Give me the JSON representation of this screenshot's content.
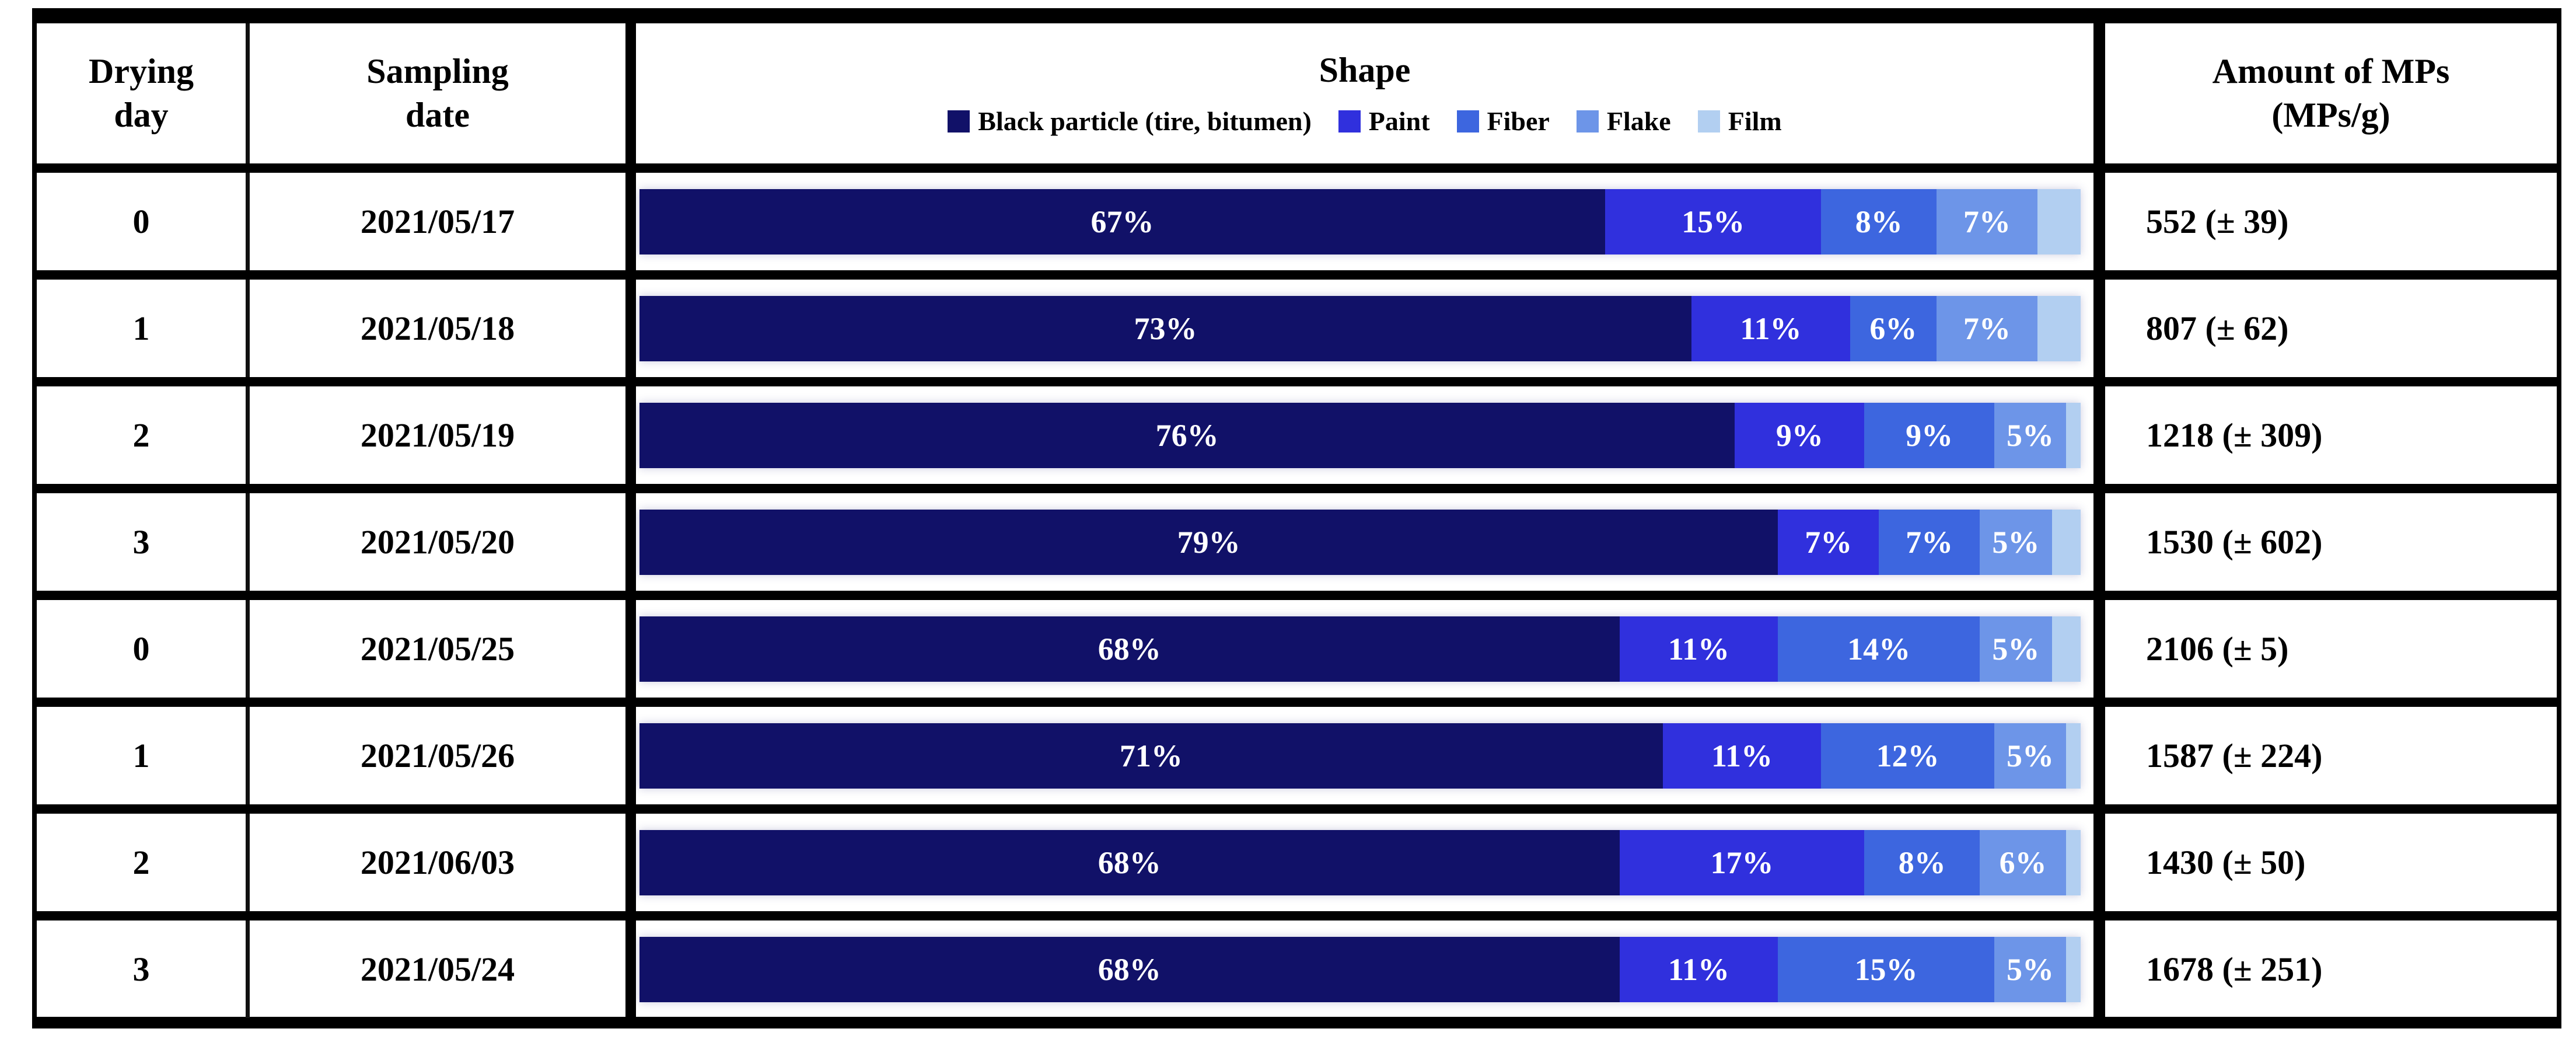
{
  "table": {
    "headers": {
      "drying_day": "Drying\nday",
      "sampling_date": "Sampling\ndate",
      "shape": "Shape",
      "amount": "Amount of MPs\n(MPs/g)"
    }
  },
  "legend": [
    {
      "key": "black-particle",
      "label": "Black particle (tire, bitumen)",
      "color": "#111168"
    },
    {
      "key": "paint",
      "label": "Paint",
      "color": "#3030dd"
    },
    {
      "key": "fiber",
      "label": "Fiber",
      "color": "#3d66df"
    },
    {
      "key": "flake",
      "label": "Flake",
      "color": "#6d95e8"
    },
    {
      "key": "film",
      "label": "Film",
      "color": "#b2cff1"
    }
  ],
  "rows": [
    {
      "drying_day": "0",
      "sampling_date": "2021/05/17",
      "amount": "552 (± 39)",
      "segments": [
        {
          "value": 67,
          "label": "67%"
        },
        {
          "value": 15,
          "label": "15%"
        },
        {
          "value": 8,
          "label": "8%"
        },
        {
          "value": 7,
          "label": "7%"
        },
        {
          "value": 3,
          "label": ""
        }
      ]
    },
    {
      "drying_day": "1",
      "sampling_date": "2021/05/18",
      "amount": "807 (± 62)",
      "segments": [
        {
          "value": 73,
          "label": "73%"
        },
        {
          "value": 11,
          "label": "11%"
        },
        {
          "value": 6,
          "label": "6%"
        },
        {
          "value": 7,
          "label": "7%"
        },
        {
          "value": 3,
          "label": ""
        }
      ]
    },
    {
      "drying_day": "2",
      "sampling_date": "2021/05/19",
      "amount": "1218 (± 309)",
      "segments": [
        {
          "value": 76,
          "label": "76%"
        },
        {
          "value": 9,
          "label": "9%"
        },
        {
          "value": 9,
          "label": "9%"
        },
        {
          "value": 5,
          "label": "5%"
        },
        {
          "value": 1,
          "label": ""
        }
      ]
    },
    {
      "drying_day": "3",
      "sampling_date": "2021/05/20",
      "amount": "1530 (± 602)",
      "segments": [
        {
          "value": 79,
          "label": "79%"
        },
        {
          "value": 7,
          "label": "7%"
        },
        {
          "value": 7,
          "label": "7%"
        },
        {
          "value": 5,
          "label": "5%"
        },
        {
          "value": 2,
          "label": ""
        }
      ]
    },
    {
      "drying_day": "0",
      "sampling_date": "2021/05/25",
      "amount": "2106 (± 5)",
      "segments": [
        {
          "value": 68,
          "label": "68%"
        },
        {
          "value": 11,
          "label": "11%"
        },
        {
          "value": 14,
          "label": "14%"
        },
        {
          "value": 5,
          "label": "5%"
        },
        {
          "value": 2,
          "label": ""
        }
      ]
    },
    {
      "drying_day": "1",
      "sampling_date": "2021/05/26",
      "amount": "1587 (± 224)",
      "segments": [
        {
          "value": 71,
          "label": "71%"
        },
        {
          "value": 11,
          "label": "11%"
        },
        {
          "value": 12,
          "label": "12%"
        },
        {
          "value": 5,
          "label": "5%"
        },
        {
          "value": 1,
          "label": ""
        }
      ]
    },
    {
      "drying_day": "2",
      "sampling_date": "2021/06/03",
      "amount": "1430 (± 50)",
      "segments": [
        {
          "value": 68,
          "label": "68%"
        },
        {
          "value": 17,
          "label": "17%"
        },
        {
          "value": 8,
          "label": "8%"
        },
        {
          "value": 6,
          "label": "6%"
        },
        {
          "value": 1,
          "label": ""
        }
      ]
    },
    {
      "drying_day": "3",
      "sampling_date": "2021/05/24",
      "amount": "1678 (± 251)",
      "segments": [
        {
          "value": 68,
          "label": "68%"
        },
        {
          "value": 11,
          "label": "11%"
        },
        {
          "value": 15,
          "label": "15%"
        },
        {
          "value": 5,
          "label": "5%"
        },
        {
          "value": 1,
          "label": ""
        }
      ]
    }
  ],
  "chart_data": {
    "type": "bar",
    "subtype": "horizontal-stacked-percentage",
    "title": "Shape",
    "legend_position": "top",
    "legend": [
      "Black particle (tire, bitumen)",
      "Paint",
      "Fiber",
      "Flake",
      "Film"
    ],
    "categories": [
      "2021/05/17",
      "2021/05/18",
      "2021/05/19",
      "2021/05/20",
      "2021/05/25",
      "2021/05/26",
      "2021/06/03",
      "2021/05/24"
    ],
    "series": [
      {
        "name": "Black particle (tire, bitumen)",
        "values": [
          67,
          73,
          76,
          79,
          68,
          71,
          68,
          68
        ]
      },
      {
        "name": "Paint",
        "values": [
          15,
          11,
          9,
          7,
          11,
          11,
          17,
          11
        ]
      },
      {
        "name": "Fiber",
        "values": [
          8,
          6,
          9,
          7,
          14,
          12,
          8,
          15
        ]
      },
      {
        "name": "Flake",
        "values": [
          7,
          7,
          5,
          5,
          5,
          5,
          6,
          5
        ]
      },
      {
        "name": "Film",
        "values": [
          3,
          3,
          1,
          2,
          2,
          1,
          1,
          1
        ]
      }
    ],
    "xlim": [
      0,
      100
    ],
    "units": "%"
  }
}
